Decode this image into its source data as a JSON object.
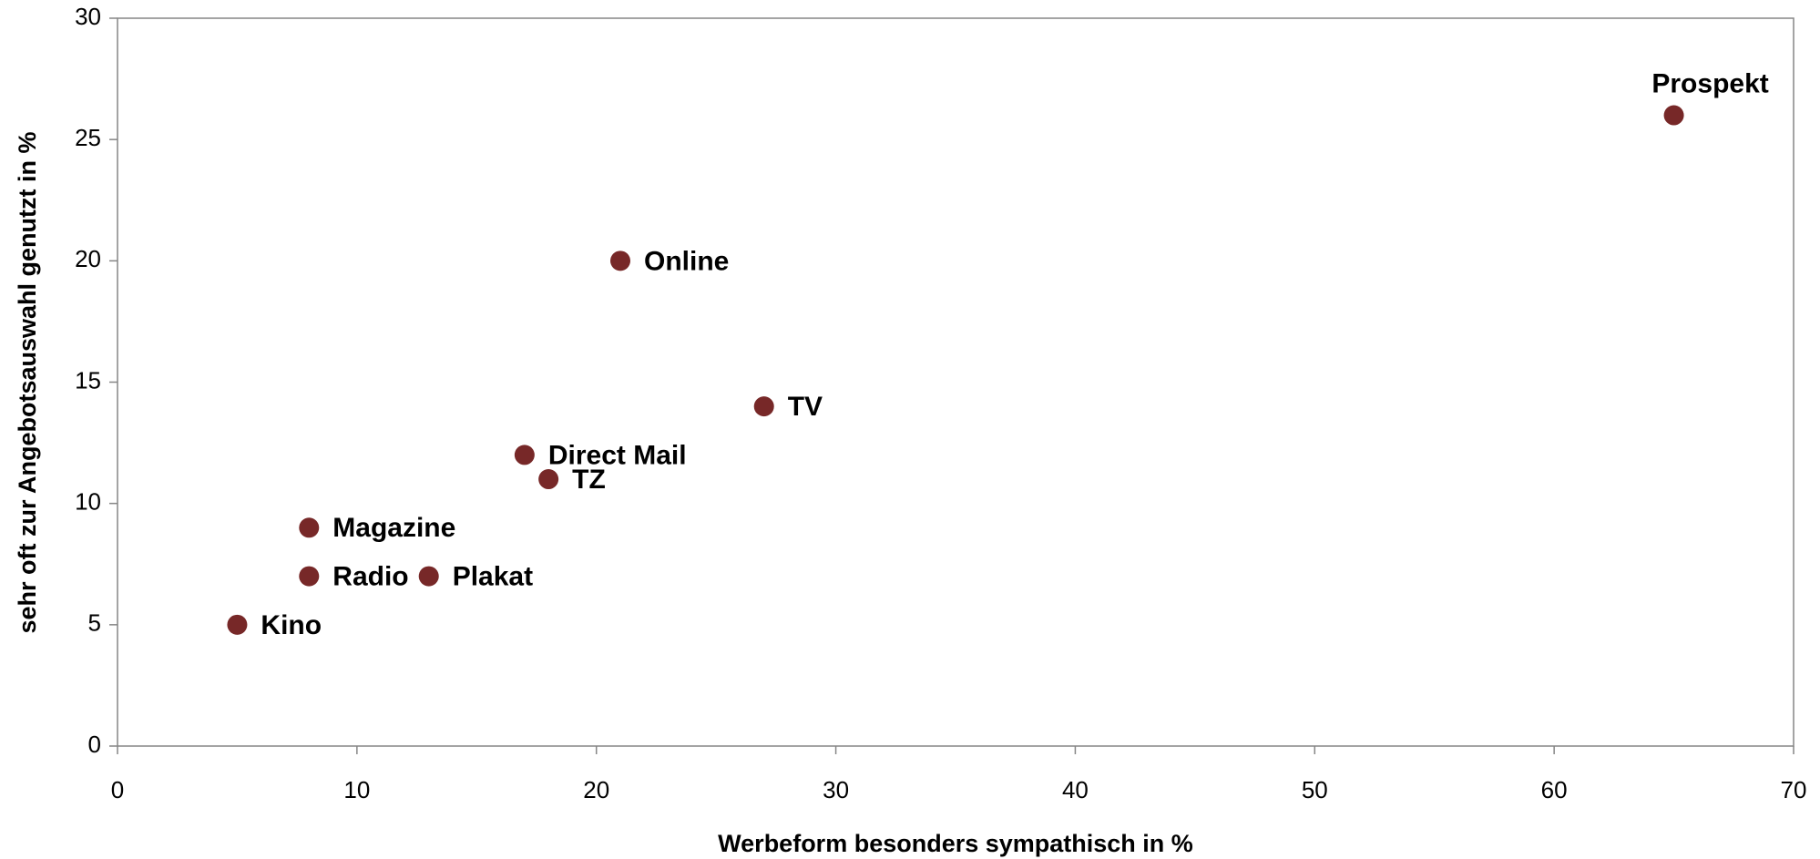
{
  "chart_data": {
    "type": "scatter",
    "x_label": "Werbeform besonders sympathisch in %",
    "y_label": "sehr oft zur Angebotsauswahl genutzt in %",
    "series": [
      {
        "color": "#772828",
        "labels": [
          "Prospekt",
          "Online",
          "TV",
          "Direct Mail",
          "TZ",
          "Magazine",
          "Radio",
          "Plakat",
          "Kino"
        ],
        "x": [
          65,
          21,
          27,
          17,
          18,
          8,
          8,
          13,
          5
        ],
        "values": [
          26,
          20,
          14,
          12,
          11,
          9,
          7,
          7,
          5
        ]
      }
    ],
    "xlim": [
      0,
      70
    ],
    "xticks": [
      0,
      10,
      20,
      30,
      40,
      50,
      60,
      70
    ],
    "ylim": [
      0,
      30
    ],
    "yticks": [
      0,
      5,
      10,
      15,
      20,
      25,
      30
    ],
    "grid": false
  }
}
